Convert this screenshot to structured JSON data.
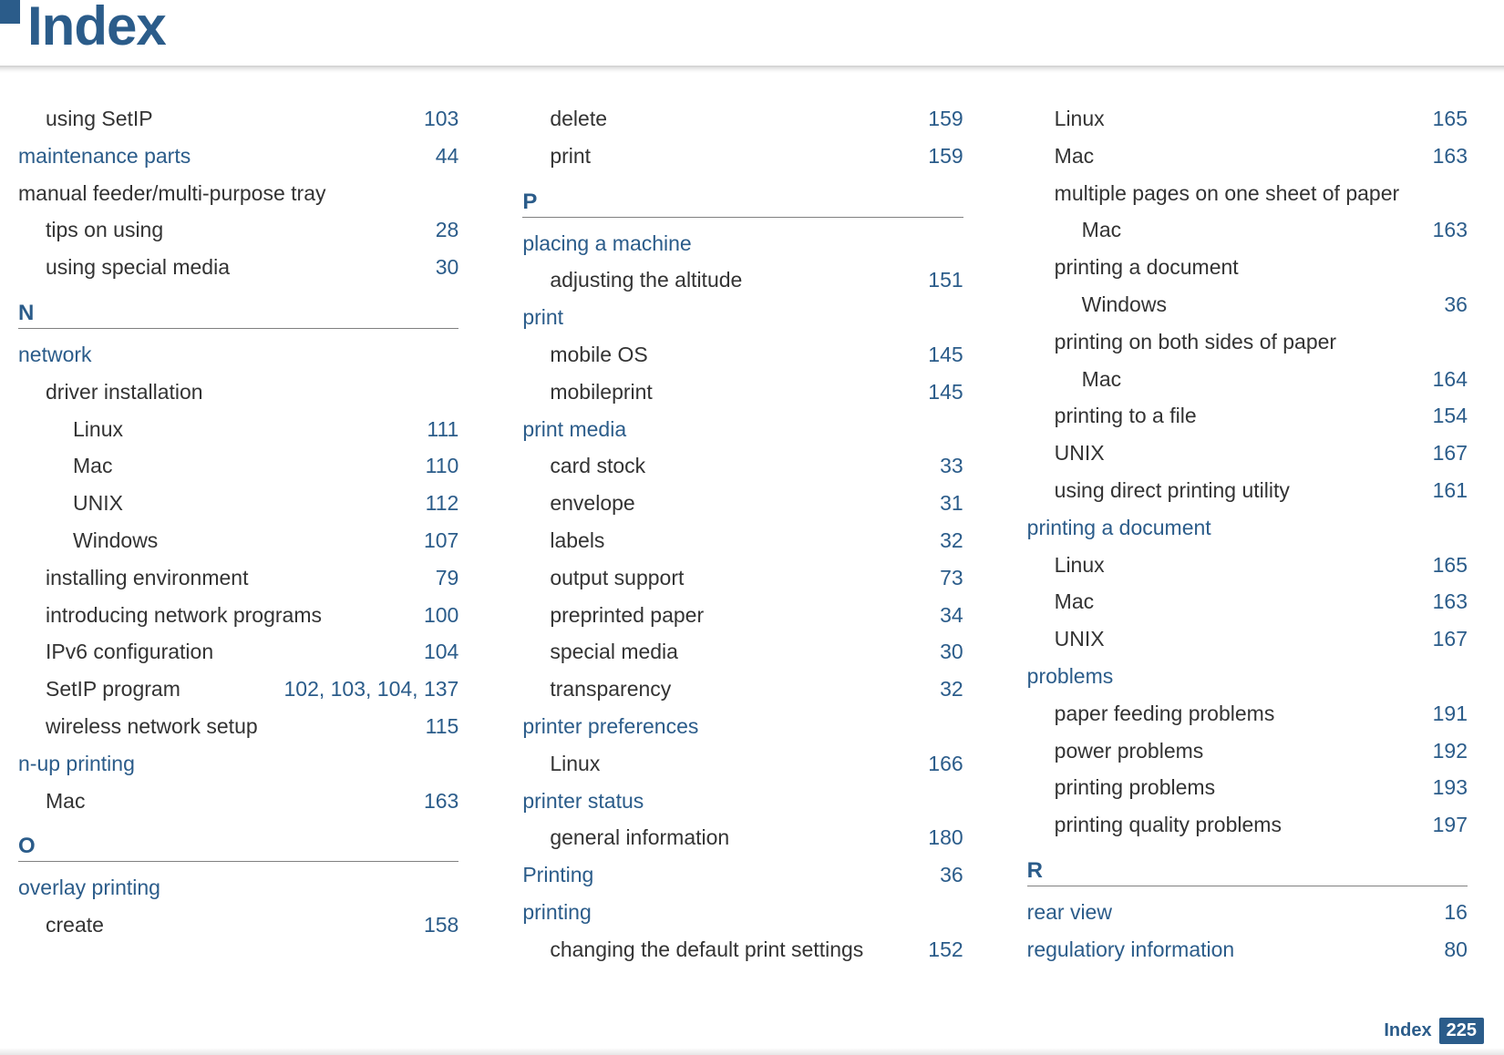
{
  "title": "Index",
  "footer": {
    "label": "Index",
    "page": "225"
  },
  "columns": [
    [
      {
        "type": "entry",
        "indent": 1,
        "text": "using SetIP",
        "page": "103",
        "link": false
      },
      {
        "type": "entry",
        "indent": 0,
        "text": "maintenance parts",
        "page": "44",
        "link": true
      },
      {
        "type": "entry",
        "indent": 0,
        "text": "manual feeder/multi-purpose tray",
        "page": "",
        "link": false
      },
      {
        "type": "entry",
        "indent": 1,
        "text": "tips on using",
        "page": "28",
        "link": false
      },
      {
        "type": "entry",
        "indent": 1,
        "text": "using special media",
        "page": "30",
        "link": false
      },
      {
        "type": "section",
        "letter": "N"
      },
      {
        "type": "entry",
        "indent": 0,
        "text": "network",
        "page": "",
        "link": true
      },
      {
        "type": "entry",
        "indent": 1,
        "text": "driver installation",
        "page": "",
        "link": false
      },
      {
        "type": "entry",
        "indent": 2,
        "text": "Linux",
        "page": "111",
        "link": false
      },
      {
        "type": "entry",
        "indent": 2,
        "text": "Mac",
        "page": "110",
        "link": false
      },
      {
        "type": "entry",
        "indent": 2,
        "text": "UNIX",
        "page": "112",
        "link": false
      },
      {
        "type": "entry",
        "indent": 2,
        "text": "Windows",
        "page": "107",
        "link": false
      },
      {
        "type": "entry",
        "indent": 1,
        "text": "installing environment",
        "page": "79",
        "link": false
      },
      {
        "type": "entry",
        "indent": 1,
        "text": "introducing network programs",
        "page": "100",
        "link": false
      },
      {
        "type": "entry",
        "indent": 1,
        "text": "IPv6 configuration",
        "page": "104",
        "link": false
      },
      {
        "type": "entry",
        "indent": 1,
        "text": "SetIP program",
        "page": "102, 103, 104, 137",
        "link": false
      },
      {
        "type": "entry",
        "indent": 1,
        "text": "wireless network setup",
        "page": "115",
        "link": false
      },
      {
        "type": "entry",
        "indent": 0,
        "text": "n-up printing",
        "page": "",
        "link": true
      },
      {
        "type": "entry",
        "indent": 1,
        "text": "Mac",
        "page": "163",
        "link": false
      },
      {
        "type": "section",
        "letter": "O"
      },
      {
        "type": "entry",
        "indent": 0,
        "text": "overlay printing",
        "page": "",
        "link": true
      },
      {
        "type": "entry",
        "indent": 1,
        "text": "create",
        "page": "158",
        "link": false
      }
    ],
    [
      {
        "type": "entry",
        "indent": 1,
        "text": "delete",
        "page": "159",
        "link": false
      },
      {
        "type": "entry",
        "indent": 1,
        "text": "print",
        "page": "159",
        "link": false
      },
      {
        "type": "section",
        "letter": "P"
      },
      {
        "type": "entry",
        "indent": 0,
        "text": "placing a machine",
        "page": "",
        "link": true
      },
      {
        "type": "entry",
        "indent": 1,
        "text": "adjusting the altitude",
        "page": "151",
        "link": false
      },
      {
        "type": "entry",
        "indent": 0,
        "text": "print",
        "page": "",
        "link": true
      },
      {
        "type": "entry",
        "indent": 1,
        "text": "mobile OS",
        "page": "145",
        "link": false
      },
      {
        "type": "entry",
        "indent": 1,
        "text": "mobileprint",
        "page": "145",
        "link": false
      },
      {
        "type": "entry",
        "indent": 0,
        "text": "print media",
        "page": "",
        "link": true
      },
      {
        "type": "entry",
        "indent": 1,
        "text": "card stock",
        "page": "33",
        "link": false
      },
      {
        "type": "entry",
        "indent": 1,
        "text": "envelope",
        "page": "31",
        "link": false
      },
      {
        "type": "entry",
        "indent": 1,
        "text": "labels",
        "page": "32",
        "link": false
      },
      {
        "type": "entry",
        "indent": 1,
        "text": "output support",
        "page": "73",
        "link": false
      },
      {
        "type": "entry",
        "indent": 1,
        "text": "preprinted paper",
        "page": "34",
        "link": false
      },
      {
        "type": "entry",
        "indent": 1,
        "text": "special media",
        "page": "30",
        "link": false
      },
      {
        "type": "entry",
        "indent": 1,
        "text": "transparency",
        "page": "32",
        "link": false
      },
      {
        "type": "entry",
        "indent": 0,
        "text": "printer preferences",
        "page": "",
        "link": true
      },
      {
        "type": "entry",
        "indent": 1,
        "text": "Linux",
        "page": "166",
        "link": false
      },
      {
        "type": "entry",
        "indent": 0,
        "text": "printer status",
        "page": "",
        "link": true
      },
      {
        "type": "entry",
        "indent": 1,
        "text": "general information",
        "page": "180",
        "link": false
      },
      {
        "type": "entry",
        "indent": 0,
        "text": "Printing",
        "page": "36",
        "link": true
      },
      {
        "type": "entry",
        "indent": 0,
        "text": "printing",
        "page": "",
        "link": true
      },
      {
        "type": "entry",
        "indent": 1,
        "text": "changing the default print settings",
        "page": "152",
        "link": false
      }
    ],
    [
      {
        "type": "entry",
        "indent": 1,
        "text": "Linux",
        "page": "165",
        "link": false
      },
      {
        "type": "entry",
        "indent": 1,
        "text": "Mac",
        "page": "163",
        "link": false
      },
      {
        "type": "entry",
        "indent": 1,
        "text": "multiple pages on one sheet of paper",
        "page": "",
        "link": false
      },
      {
        "type": "entry",
        "indent": 2,
        "text": "Mac",
        "page": "163",
        "link": false
      },
      {
        "type": "entry",
        "indent": 1,
        "text": "printing a document",
        "page": "",
        "link": false
      },
      {
        "type": "entry",
        "indent": 2,
        "text": "Windows",
        "page": "36",
        "link": false
      },
      {
        "type": "entry",
        "indent": 1,
        "text": "printing on both sides of paper",
        "page": "",
        "link": false
      },
      {
        "type": "entry",
        "indent": 2,
        "text": "Mac",
        "page": "164",
        "link": false
      },
      {
        "type": "entry",
        "indent": 1,
        "text": "printing to a file",
        "page": "154",
        "link": false
      },
      {
        "type": "entry",
        "indent": 1,
        "text": "UNIX",
        "page": "167",
        "link": false
      },
      {
        "type": "entry",
        "indent": 1,
        "text": "using direct printing utility",
        "page": "161",
        "link": false
      },
      {
        "type": "entry",
        "indent": 0,
        "text": "printing a document",
        "page": "",
        "link": true
      },
      {
        "type": "entry",
        "indent": 1,
        "text": "Linux",
        "page": "165",
        "link": false
      },
      {
        "type": "entry",
        "indent": 1,
        "text": "Mac",
        "page": "163",
        "link": false
      },
      {
        "type": "entry",
        "indent": 1,
        "text": "UNIX",
        "page": "167",
        "link": false
      },
      {
        "type": "entry",
        "indent": 0,
        "text": "problems",
        "page": "",
        "link": true
      },
      {
        "type": "entry",
        "indent": 1,
        "text": "paper feeding problems",
        "page": "191",
        "link": false
      },
      {
        "type": "entry",
        "indent": 1,
        "text": "power problems",
        "page": "192",
        "link": false
      },
      {
        "type": "entry",
        "indent": 1,
        "text": "printing problems",
        "page": "193",
        "link": false
      },
      {
        "type": "entry",
        "indent": 1,
        "text": "printing quality problems",
        "page": "197",
        "link": false
      },
      {
        "type": "section",
        "letter": "R"
      },
      {
        "type": "entry",
        "indent": 0,
        "text": "rear view",
        "page": "16",
        "link": true
      },
      {
        "type": "entry",
        "indent": 0,
        "text": "regulatiory information",
        "page": "80",
        "link": true
      }
    ]
  ]
}
